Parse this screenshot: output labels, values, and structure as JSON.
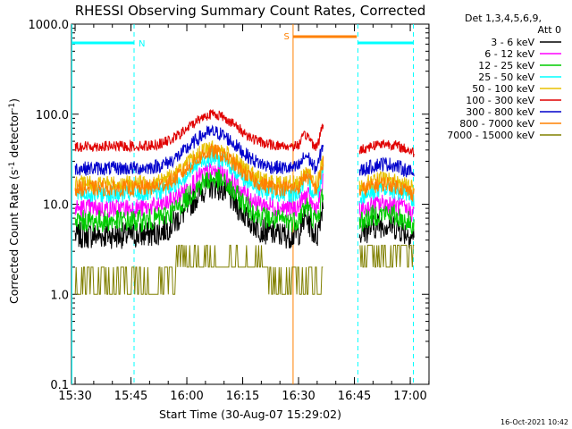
{
  "chart_data": {
    "type": "line",
    "title": "RHESSI Observing Summary Count Rates, Corrected",
    "xlabel": "Start Time (30-Aug-07 15:29:02)",
    "ylabel": "Corrected Count Rate (s",
    "ylabel_sup1": "-1",
    "ylabel_mid": " detector",
    "ylabel_sup2": "-1",
    "ylabel_end": ")",
    "y_scale": "log",
    "ylim": [
      0.1,
      1000.0
    ],
    "y_ticks": [
      {
        "value": 1000.0,
        "label": "1000.0"
      },
      {
        "value": 100.0,
        "label": "100.0"
      },
      {
        "value": 10.0,
        "label": "10.0"
      },
      {
        "value": 1.0,
        "label": "1.0"
      },
      {
        "value": 0.1,
        "label": "0.1"
      }
    ],
    "x_ticks": [
      {
        "minutes": 0.97,
        "label": "15:30"
      },
      {
        "minutes": 15.97,
        "label": "15:45"
      },
      {
        "minutes": 30.97,
        "label": "16:00"
      },
      {
        "minutes": 45.97,
        "label": "16:15"
      },
      {
        "minutes": 60.97,
        "label": "16:30"
      },
      {
        "minutes": 75.97,
        "label": "16:45"
      },
      {
        "minutes": 90.97,
        "label": "17:00"
      }
    ],
    "xlim_minutes": [
      0,
      96
    ],
    "legend_header": [
      "Det 1,3,4,5,6,9,",
      "Att 0"
    ],
    "legend_position": "right",
    "timestamp": "16-Oct-2021 10:42",
    "night_flags": [
      {
        "label": "N",
        "start_min": 0,
        "end_min": 16.8
      },
      {
        "label": "",
        "start_min": 76.9,
        "end_min": 91.8
      }
    ],
    "saa_flags": [
      {
        "label": "S",
        "start_min": 59.5,
        "end_min": 76.6
      }
    ],
    "attenuator_color": "#00ffff",
    "saa_color": "#ff8000",
    "gaps_minutes": [
      [
        67.6,
        77.3
      ]
    ],
    "series": [
      {
        "name": "3 - 6 keV",
        "color": "#000000",
        "base": 4.5,
        "peak": 16,
        "amp": 0.3
      },
      {
        "name": "6 - 12 keV",
        "color": "#ff00ff",
        "base": 9,
        "peak": 23,
        "amp": 0.22
      },
      {
        "name": "12 - 25 keV",
        "color": "#00cc00",
        "base": 6.5,
        "peak": 19,
        "amp": 0.25
      },
      {
        "name": "25 - 50 keV",
        "color": "#00ffff",
        "base": 13,
        "peak": 33,
        "amp": 0.2
      },
      {
        "name": "50 - 100 keV",
        "color": "#e8c000",
        "base": 17,
        "peak": 42,
        "amp": 0.18
      },
      {
        "name": "100 - 300 keV",
        "color": "#e00000",
        "base": 44,
        "peak": 100,
        "amp": 0.12
      },
      {
        "name": "300 - 800 keV",
        "color": "#0000cc",
        "base": 25,
        "peak": 63,
        "amp": 0.16
      },
      {
        "name": "800 - 7000 keV",
        "color": "#ff8000",
        "base": 15,
        "peak": 38,
        "amp": 0.18
      },
      {
        "name": "7000 - 15000 keV",
        "color": "#808000",
        "base": 1.4,
        "peak": 3.5,
        "amp": 0.5
      }
    ]
  }
}
